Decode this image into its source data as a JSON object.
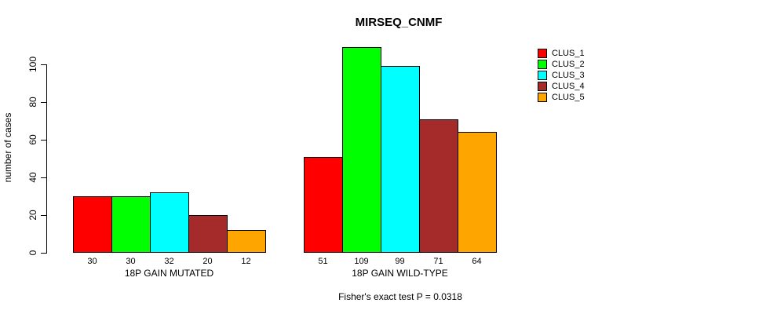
{
  "chart_data": {
    "type": "bar",
    "title": "MIRSEQ_CNMF",
    "ylabel": "number of cases",
    "xlabel": "",
    "yticks": [
      0,
      20,
      40,
      60,
      80,
      100
    ],
    "ylim": [
      0,
      110
    ],
    "grid": false,
    "legend_position": "right",
    "categories": [
      "18P GAIN MUTATED",
      "18P GAIN WILD-TYPE"
    ],
    "series": [
      {
        "name": "CLUS_1",
        "color": "#FF0000",
        "values": [
          30,
          51
        ]
      },
      {
        "name": "CLUS_2",
        "color": "#00FF00",
        "values": [
          30,
          109
        ]
      },
      {
        "name": "CLUS_3",
        "color": "#00FFFF",
        "values": [
          32,
          99
        ]
      },
      {
        "name": "CLUS_4",
        "color": "#A52A2A",
        "values": [
          20,
          71
        ]
      },
      {
        "name": "CLUS_5",
        "color": "#FFA500",
        "values": [
          12,
          64
        ]
      }
    ],
    "bar_value_labels_shown": true,
    "footer": "Fisher's exact test P = 0.0318"
  }
}
